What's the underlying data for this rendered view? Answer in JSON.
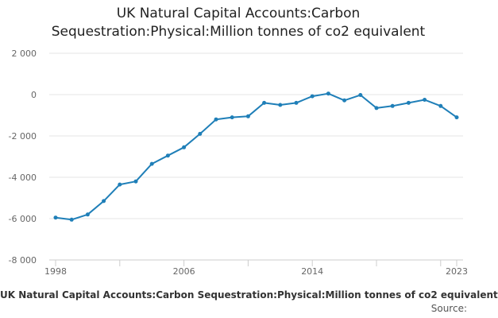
{
  "chart_data": {
    "type": "line",
    "title_line1": "UK Natural Capital Accounts:Carbon",
    "title_line2": "Sequestration:Physical:Million tonnes of co2 equivalent",
    "xlabel": "",
    "ylabel": "",
    "xlim": [
      1998,
      2023
    ],
    "ylim": [
      -8000,
      2000
    ],
    "yticks": [
      -8000,
      -6000,
      -4000,
      -2000,
      0,
      2000
    ],
    "ytick_labels": [
      "-8 000",
      "-6 000",
      "-4 000",
      "-2 000",
      "0",
      "2 000"
    ],
    "xticks": [
      1998,
      2006,
      2014,
      2023
    ],
    "xtick_labels": [
      "1998",
      "2006",
      "2014",
      "2023"
    ],
    "grid": "horizontal",
    "series": [
      {
        "name": "UK Natural Capital Accounts:Carbon Sequestration:Physical:Million tonnes of co2 equivalent",
        "color": "#1f7fb8",
        "x": [
          1998,
          1999,
          2000,
          2001,
          2002,
          2003,
          2004,
          2005,
          2006,
          2007,
          2008,
          2009,
          2010,
          2011,
          2012,
          2013,
          2014,
          2015,
          2016,
          2017,
          2018,
          2019,
          2020,
          2021,
          2022,
          2023
        ],
        "values": [
          -5950,
          -6050,
          -5800,
          -5150,
          -4350,
          -4200,
          -3350,
          -2950,
          -2550,
          -1900,
          -1200,
          -1100,
          -1050,
          -400,
          -500,
          -400,
          -80,
          50,
          -280,
          -20,
          -650,
          -550,
          -400,
          -250,
          -550,
          -1100
        ]
      }
    ],
    "legend": "UK Natural Capital Accounts:Carbon Sequestration:Physical:Million tonnes of co2 equivalent",
    "source_label": "Source:"
  }
}
